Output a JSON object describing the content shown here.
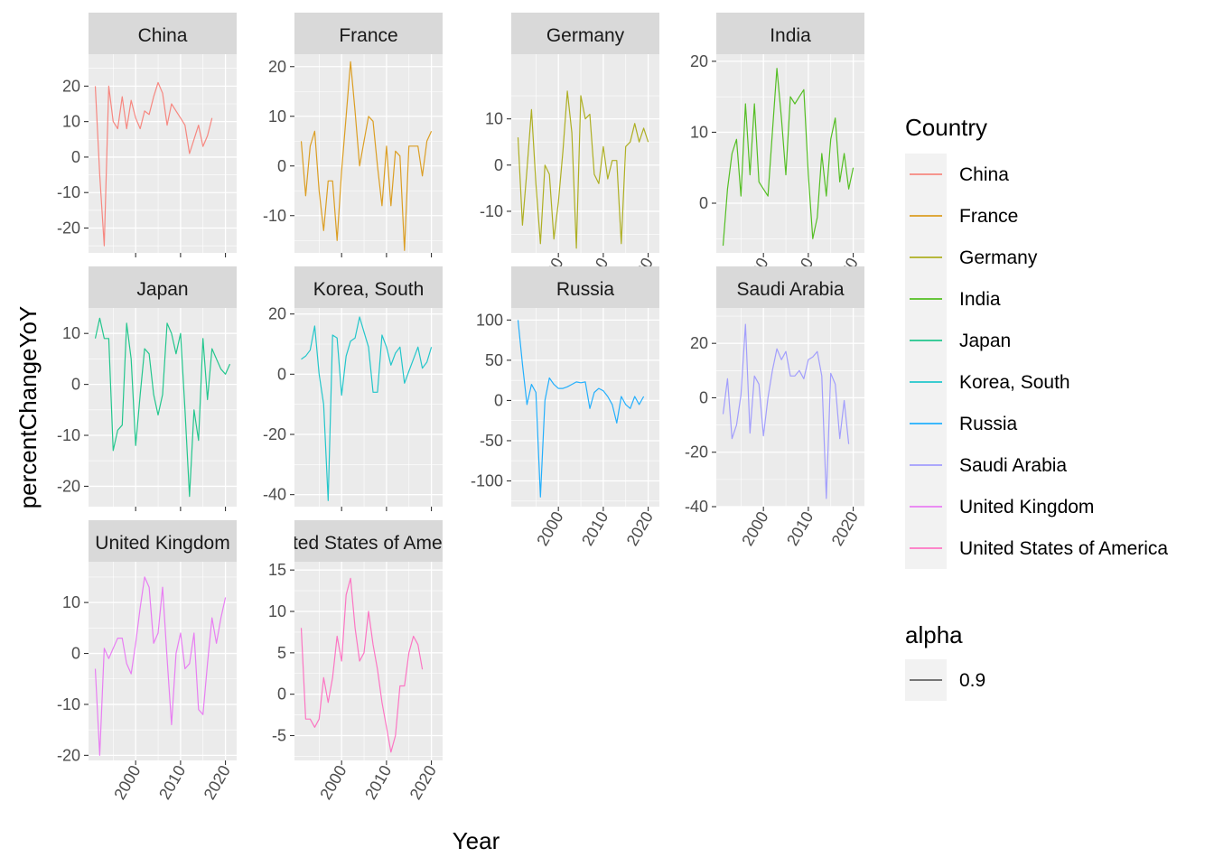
{
  "chart_data": {
    "type": "line",
    "xlabel": "Year",
    "ylabel": "percentChangeYoY",
    "x": [
      1991,
      1992,
      1993,
      1994,
      1995,
      1996,
      1997,
      1998,
      1999,
      2000,
      2001,
      2002,
      2003,
      2004,
      2005,
      2006,
      2007,
      2008,
      2009,
      2010,
      2011,
      2012,
      2013,
      2014,
      2015,
      2016,
      2017,
      2018,
      2019,
      2020,
      2021
    ],
    "x_ticks": [
      "2000",
      "2010",
      "2020"
    ],
    "x_tick_values": [
      2000,
      2010,
      2020
    ],
    "xlim": [
      1989.5,
      2022.5
    ],
    "grid": true,
    "legend": {
      "title": "Country",
      "placement": "right",
      "entries": [
        "China",
        "France",
        "Germany",
        "India",
        "Japan",
        "Korea, South",
        "Russia",
        "Saudi Arabia",
        "United Kingdom",
        "United States of America"
      ],
      "alpha_title": "alpha",
      "alpha_entry": "0.9"
    },
    "series": [
      {
        "name": "China",
        "facet_label": "China",
        "color": "#F8766D",
        "ylim": [
          -27,
          29
        ],
        "yticks": [
          -20,
          -10,
          0,
          10,
          20
        ],
        "ytick_labels": [
          "-20",
          "-10",
          "0",
          "10",
          "20"
        ],
        "values": [
          20,
          -5,
          -25,
          20,
          10,
          8,
          17,
          8,
          16,
          11,
          8,
          13,
          12,
          17,
          21,
          18,
          9,
          15,
          13,
          11,
          9,
          1,
          5,
          9,
          3,
          6,
          11,
          null,
          null,
          null,
          null
        ]
      },
      {
        "name": "France",
        "facet_label": "France",
        "color": "#D89000",
        "ylim": [
          -17.5,
          22.5
        ],
        "yticks": [
          -10,
          0,
          10,
          20
        ],
        "ytick_labels": [
          "-10",
          "0",
          "10",
          "20"
        ],
        "values": [
          5,
          -6,
          4,
          7,
          -5,
          -13,
          -3,
          -3,
          -15,
          -1,
          10,
          21,
          11,
          0,
          5,
          10,
          9,
          0,
          -8,
          4,
          -8,
          3,
          2,
          -17,
          4,
          4,
          4,
          -2,
          5,
          7,
          null
        ]
      },
      {
        "name": "Germany",
        "facet_label": "Germany",
        "color": "#A3A500",
        "ylim": [
          -19,
          24
        ],
        "yticks": [
          -10,
          0,
          10
        ],
        "ytick_labels": [
          "-10",
          "0",
          "10"
        ],
        "values": [
          6,
          -13,
          -1,
          12,
          -4,
          -17,
          0,
          -2,
          -16,
          -8,
          3,
          16,
          7,
          -18,
          15,
          10,
          11,
          -2,
          -4,
          4,
          -3,
          1,
          1,
          -17,
          4,
          5,
          9,
          5,
          8,
          5,
          null
        ]
      },
      {
        "name": "India",
        "facet_label": "India",
        "color": "#39B600",
        "ylim": [
          -7,
          21
        ],
        "yticks": [
          0,
          10,
          20
        ],
        "ytick_labels": [
          "0",
          "10",
          "20"
        ],
        "values": [
          -6,
          2,
          7,
          9,
          1,
          14,
          4,
          14,
          3,
          2,
          1,
          10,
          19,
          12,
          4,
          15,
          14,
          15,
          16,
          4,
          -5,
          -2,
          7,
          1,
          9,
          12,
          3,
          7,
          2,
          5,
          null
        ]
      },
      {
        "name": "Japan",
        "facet_label": "Japan",
        "color": "#00BF7D",
        "ylim": [
          -24,
          15
        ],
        "yticks": [
          -20,
          -10,
          0,
          10
        ],
        "ytick_labels": [
          "-20",
          "-10",
          "0",
          "10"
        ],
        "values": [
          9,
          13,
          9,
          9,
          -13,
          -9,
          -8,
          12,
          5,
          -12,
          -2,
          7,
          6,
          -2,
          -6,
          -2,
          12,
          10,
          6,
          10,
          -5,
          -22,
          -5,
          -11,
          9,
          -3,
          7,
          5,
          3,
          2,
          4
        ]
      },
      {
        "name": "Korea, South",
        "facet_label": "Korea, South",
        "color": "#00BFC4",
        "ylim": [
          -44,
          22
        ],
        "yticks": [
          -40,
          -20,
          0,
          20
        ],
        "ytick_labels": [
          "-40",
          "-20",
          "0",
          "20"
        ],
        "values": [
          5,
          6,
          8,
          16,
          0,
          -10,
          -42,
          13,
          12,
          -7,
          6,
          11,
          12,
          19,
          14,
          9,
          -6,
          -6,
          13,
          9,
          3,
          7,
          9,
          -3,
          1,
          5,
          9,
          2,
          4,
          9,
          null
        ]
      },
      {
        "name": "Russia",
        "facet_label": "Russia",
        "color": "#00A5FF",
        "ylim": [
          -132,
          115
        ],
        "yticks": [
          -100,
          -50,
          0,
          50,
          100
        ],
        "ytick_labels": [
          "-100",
          "-50",
          "0",
          "50",
          "100"
        ],
        "values": [
          100,
          45,
          -5,
          20,
          10,
          -120,
          0,
          28,
          20,
          15,
          15,
          17,
          20,
          23,
          22,
          23,
          -10,
          10,
          15,
          12,
          5,
          -5,
          -28,
          5,
          -5,
          -10,
          5,
          -5,
          5,
          null,
          null
        ]
      },
      {
        "name": "Saudi Arabia",
        "facet_label": "Saudi Arabia",
        "color": "#9590FF",
        "ylim": [
          -40,
          33
        ],
        "yticks": [
          -40,
          -20,
          0,
          20
        ],
        "ytick_labels": [
          "-40",
          "-20",
          "0",
          "20"
        ],
        "values": [
          -6,
          7,
          -15,
          -10,
          1,
          27,
          -13,
          8,
          5,
          -14,
          0,
          10,
          18,
          14,
          17,
          8,
          8,
          10,
          7,
          14,
          15,
          17,
          8,
          -37,
          9,
          5,
          -15,
          -1,
          -17,
          null,
          null
        ]
      },
      {
        "name": "United Kingdom",
        "facet_label": "United Kingdom",
        "color": "#E76BF3",
        "ylim": [
          -21,
          18
        ],
        "yticks": [
          -20,
          -10,
          0,
          10
        ],
        "ytick_labels": [
          "-20",
          "-10",
          "0",
          "10"
        ],
        "values": [
          -3,
          -20,
          1,
          -1,
          1,
          3,
          3,
          -2,
          -4,
          2,
          9,
          15,
          13,
          2,
          4,
          13,
          -1,
          -14,
          0,
          4,
          -3,
          -2,
          4,
          -11,
          -12,
          -2,
          7,
          2,
          7,
          11,
          null
        ]
      },
      {
        "name": "United States of America",
        "facet_label": "United States of America",
        "facet_label_visible": "ed States of Ame",
        "color": "#FF62BC",
        "ylim": [
          -8,
          16
        ],
        "yticks": [
          -5,
          0,
          5,
          10,
          15
        ],
        "ytick_labels": [
          "-5",
          "0",
          "5",
          "10",
          "15"
        ],
        "values": [
          8,
          -3,
          -3,
          -4,
          -3,
          2,
          -1,
          2,
          7,
          4,
          12,
          14,
          8,
          4,
          5,
          10,
          6,
          3,
          -1,
          -4,
          -7,
          -5,
          1,
          1,
          5,
          7,
          6,
          3,
          null,
          null,
          null
        ]
      }
    ]
  }
}
